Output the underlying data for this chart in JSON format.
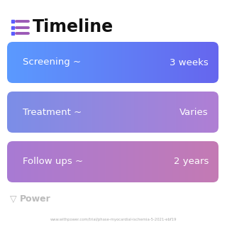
{
  "title": "Timeline",
  "title_fontsize": 17,
  "title_fontweight": "bold",
  "title_color": "#111111",
  "background_color": "#ffffff",
  "rows": [
    {
      "left_label": "Screening ~",
      "right_label": "3 weeks",
      "left_color": "#5b9aff",
      "right_color": "#6666ee"
    },
    {
      "left_label": "Treatment ~",
      "right_label": "Varies",
      "left_color": "#7b8ee8",
      "right_color": "#b07fd4"
    },
    {
      "left_label": "Follow ups ~",
      "right_label": "2 years",
      "left_color": "#a87bd4",
      "right_color": "#c47ab4"
    }
  ],
  "icon_dot_color": "#5b5bff",
  "icon_line_color": "#9b59b6",
  "watermark_text": "Power",
  "watermark_color": "#bbbbbb",
  "url_text": "www.withpower.com/trial/phase-myocardial-ischemia-5-2021-ebf19",
  "url_color": "#aaaaaa",
  "text_color": "#ffffff",
  "label_fontsize": 9.5
}
